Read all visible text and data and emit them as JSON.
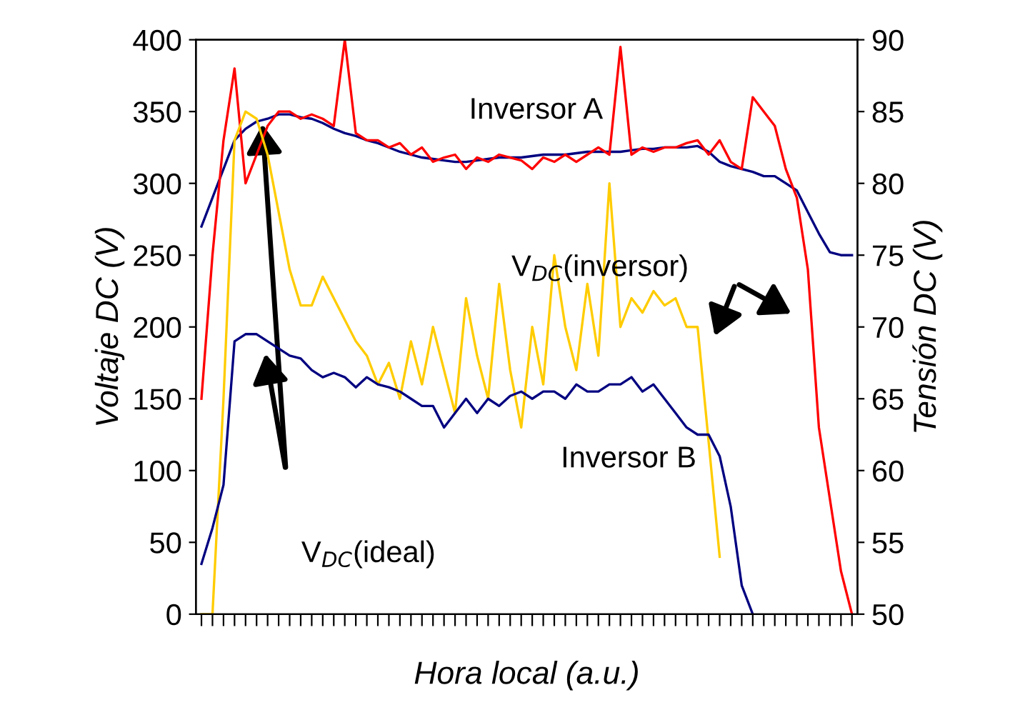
{
  "chart_data": {
    "type": "line",
    "xlabel": "Hora local (a.u.)",
    "ylabel": "Voltaje DC (V)",
    "y2label": "Tensión DC (V)",
    "categories": [
      null,
      null,
      null,
      null,
      null,
      null,
      null,
      null,
      null,
      null,
      null,
      null,
      null,
      null,
      null,
      null,
      null,
      null,
      null,
      null,
      null,
      null,
      null,
      null,
      null,
      null,
      null,
      null,
      null,
      null,
      null,
      null,
      null,
      null,
      null,
      null,
      null,
      null,
      null,
      null,
      null,
      null,
      null,
      null,
      null,
      null,
      null,
      null,
      null,
      null,
      null,
      null,
      null,
      null,
      null,
      null,
      null,
      null,
      null,
      null
    ],
    "ylim": [
      0,
      400
    ],
    "yticks": [
      0,
      50,
      100,
      150,
      200,
      250,
      300,
      350,
      400
    ],
    "y2lim": [
      50,
      90
    ],
    "y2ticks": [
      50,
      55,
      60,
      65,
      70,
      75,
      80,
      85,
      90
    ],
    "grid": false,
    "legend": false,
    "marker": "none",
    "line_style": "solid",
    "series": [
      {
        "color": "#000080",
        "values": [
          270,
          290,
          310,
          330,
          338,
          343,
          345,
          348,
          348,
          346,
          345,
          342,
          338,
          335,
          333,
          330,
          328,
          325,
          322,
          320,
          318,
          317,
          316,
          315,
          315,
          316,
          317,
          318,
          318,
          318,
          319,
          320,
          320,
          320,
          321,
          322,
          322,
          322,
          322,
          323,
          324,
          324,
          325,
          325,
          325,
          326,
          322,
          315,
          312,
          310,
          308,
          305,
          305,
          300,
          295,
          280,
          265,
          252,
          250,
          250
        ]
      },
      {
        "color": "#ff0000",
        "values": [
          150,
          250,
          330,
          380,
          300,
          320,
          340,
          350,
          350,
          345,
          348,
          345,
          340,
          400,
          335,
          330,
          330,
          325,
          328,
          320,
          325,
          315,
          318,
          320,
          310,
          318,
          315,
          320,
          318,
          316,
          310,
          318,
          315,
          320,
          315,
          320,
          325,
          320,
          395,
          320,
          325,
          322,
          325,
          325,
          328,
          330,
          320,
          330,
          315,
          310,
          360,
          350,
          340,
          310,
          290,
          240,
          130,
          80,
          30,
          0
        ]
      },
      {
        "color": "#ffcc00",
        "values": [
          0,
          0,
          150,
          330,
          350,
          345,
          320,
          280,
          240,
          215,
          215,
          235,
          220,
          205,
          190,
          180,
          160,
          175,
          150,
          190,
          160,
          200,
          170,
          140,
          220,
          180,
          150,
          230,
          170,
          130,
          200,
          160,
          250,
          200,
          170,
          230,
          180,
          300,
          200,
          220,
          210,
          225,
          215,
          220,
          200,
          200,
          120,
          40,
          null,
          null,
          null,
          null,
          null,
          null,
          null,
          null,
          null,
          null,
          null,
          null
        ]
      },
      {
        "color": "#000080",
        "values": [
          35,
          60,
          90,
          190,
          195,
          195,
          190,
          185,
          180,
          178,
          170,
          165,
          168,
          165,
          158,
          165,
          160,
          158,
          155,
          150,
          145,
          145,
          130,
          140,
          150,
          140,
          150,
          145,
          152,
          155,
          150,
          155,
          155,
          150,
          160,
          155,
          155,
          160,
          160,
          165,
          155,
          160,
          150,
          140,
          130,
          125,
          125,
          110,
          75,
          20,
          0,
          null,
          null,
          null,
          null,
          null,
          null,
          null,
          null,
          null
        ]
      }
    ],
    "annotations": [
      "Inversor A",
      "Inversor B",
      "V$_{DC}$(inversor)",
      "V$_{DC}$(ideal)"
    ]
  }
}
